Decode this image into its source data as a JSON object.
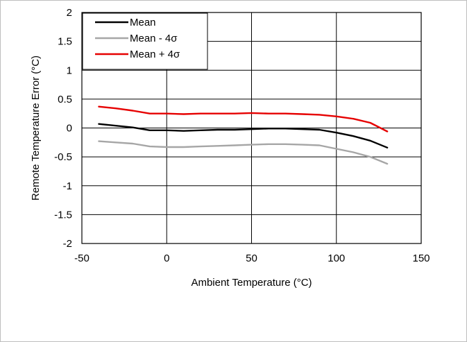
{
  "chart_data": {
    "type": "line",
    "title": "",
    "xlabel": "Ambient Temperature (°C)",
    "ylabel": "Remote Temperature Error (°C)",
    "xlim": [
      -50,
      150
    ],
    "ylim": [
      -2,
      2
    ],
    "x_ticks": [
      -50,
      0,
      50,
      100,
      150
    ],
    "y_ticks": [
      -2,
      -1.5,
      -1,
      -0.5,
      0,
      0.5,
      1,
      1.5,
      2
    ],
    "x_tick_labels": [
      "-50",
      "0",
      "50",
      "100",
      "150"
    ],
    "y_tick_labels": [
      "-2",
      "-1.5",
      "-1",
      "-0.5",
      "0",
      "0.5",
      "1",
      "1.5",
      "2"
    ],
    "grid": true,
    "legend_position": "top-left",
    "series": [
      {
        "name": "Mean",
        "color": "#000000",
        "x": [
          -40,
          -30,
          -20,
          -10,
          0,
          10,
          20,
          30,
          40,
          50,
          60,
          70,
          80,
          90,
          100,
          110,
          120,
          130
        ],
        "y": [
          0.07,
          0.04,
          0.01,
          -0.04,
          -0.04,
          -0.05,
          -0.04,
          -0.03,
          -0.03,
          -0.02,
          -0.01,
          -0.01,
          -0.02,
          -0.03,
          -0.08,
          -0.14,
          -0.22,
          -0.34
        ]
      },
      {
        "name": "Mean - 4σ",
        "color": "#a6a6a6",
        "x": [
          -40,
          -30,
          -20,
          -10,
          0,
          10,
          20,
          30,
          40,
          50,
          60,
          70,
          80,
          90,
          100,
          110,
          120,
          130
        ],
        "y": [
          -0.23,
          -0.25,
          -0.27,
          -0.32,
          -0.33,
          -0.33,
          -0.32,
          -0.31,
          -0.3,
          -0.29,
          -0.28,
          -0.28,
          -0.29,
          -0.3,
          -0.36,
          -0.42,
          -0.5,
          -0.62
        ]
      },
      {
        "name": "Mean + 4σ",
        "color": "#e60000",
        "x": [
          -40,
          -30,
          -20,
          -10,
          0,
          10,
          20,
          30,
          40,
          50,
          60,
          70,
          80,
          90,
          100,
          110,
          120,
          130
        ],
        "y": [
          0.37,
          0.34,
          0.3,
          0.25,
          0.25,
          0.24,
          0.25,
          0.25,
          0.25,
          0.26,
          0.25,
          0.25,
          0.24,
          0.23,
          0.2,
          0.16,
          0.09,
          -0.06
        ]
      }
    ]
  }
}
